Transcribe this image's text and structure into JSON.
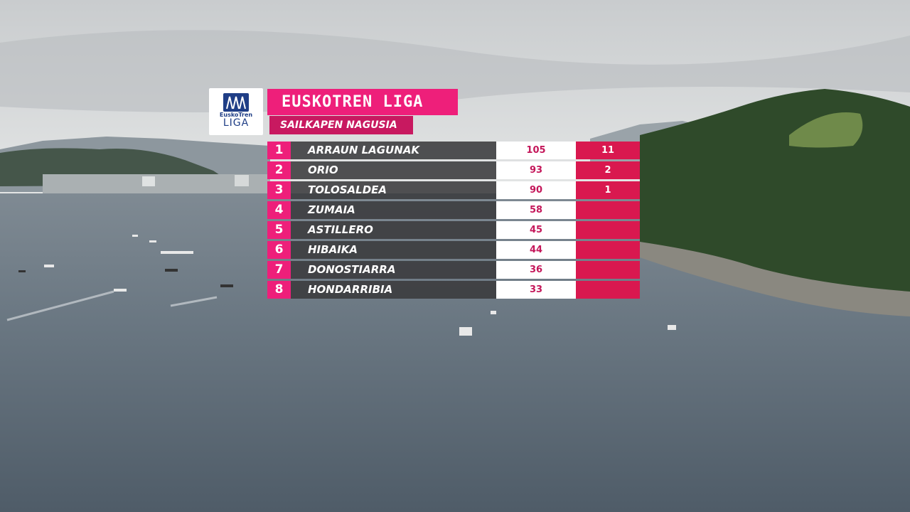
{
  "logo": {
    "word1": "EuskoTren",
    "word2": "LIGA"
  },
  "header": {
    "title": "EUSKOTREN LIGA",
    "subtitle": "SAILKAPEN NAGUSIA"
  },
  "standings": [
    {
      "rank": "1",
      "team": "ARRAUN LAGUNAK",
      "points": "105",
      "pennants": "11"
    },
    {
      "rank": "2",
      "team": "ORIO",
      "points": "93",
      "pennants": "2"
    },
    {
      "rank": "3",
      "team": "TOLOSALDEA",
      "points": "90",
      "pennants": "1"
    },
    {
      "rank": "4",
      "team": "ZUMAIA",
      "points": "58",
      "pennants": ""
    },
    {
      "rank": "5",
      "team": "ASTILLERO",
      "points": "45",
      "pennants": ""
    },
    {
      "rank": "6",
      "team": "HIBAIKA",
      "points": "44",
      "pennants": ""
    },
    {
      "rank": "7",
      "team": "DONOSTIARRA",
      "points": "36",
      "pennants": ""
    },
    {
      "rank": "8",
      "team": "HONDARRIBIA",
      "points": "33",
      "pennants": ""
    }
  ],
  "colors": {
    "accent_pink": "#ee1f7a",
    "dark_pink": "#c81960",
    "pennant_red": "#d9184f",
    "logo_blue": "#1f3e86"
  }
}
